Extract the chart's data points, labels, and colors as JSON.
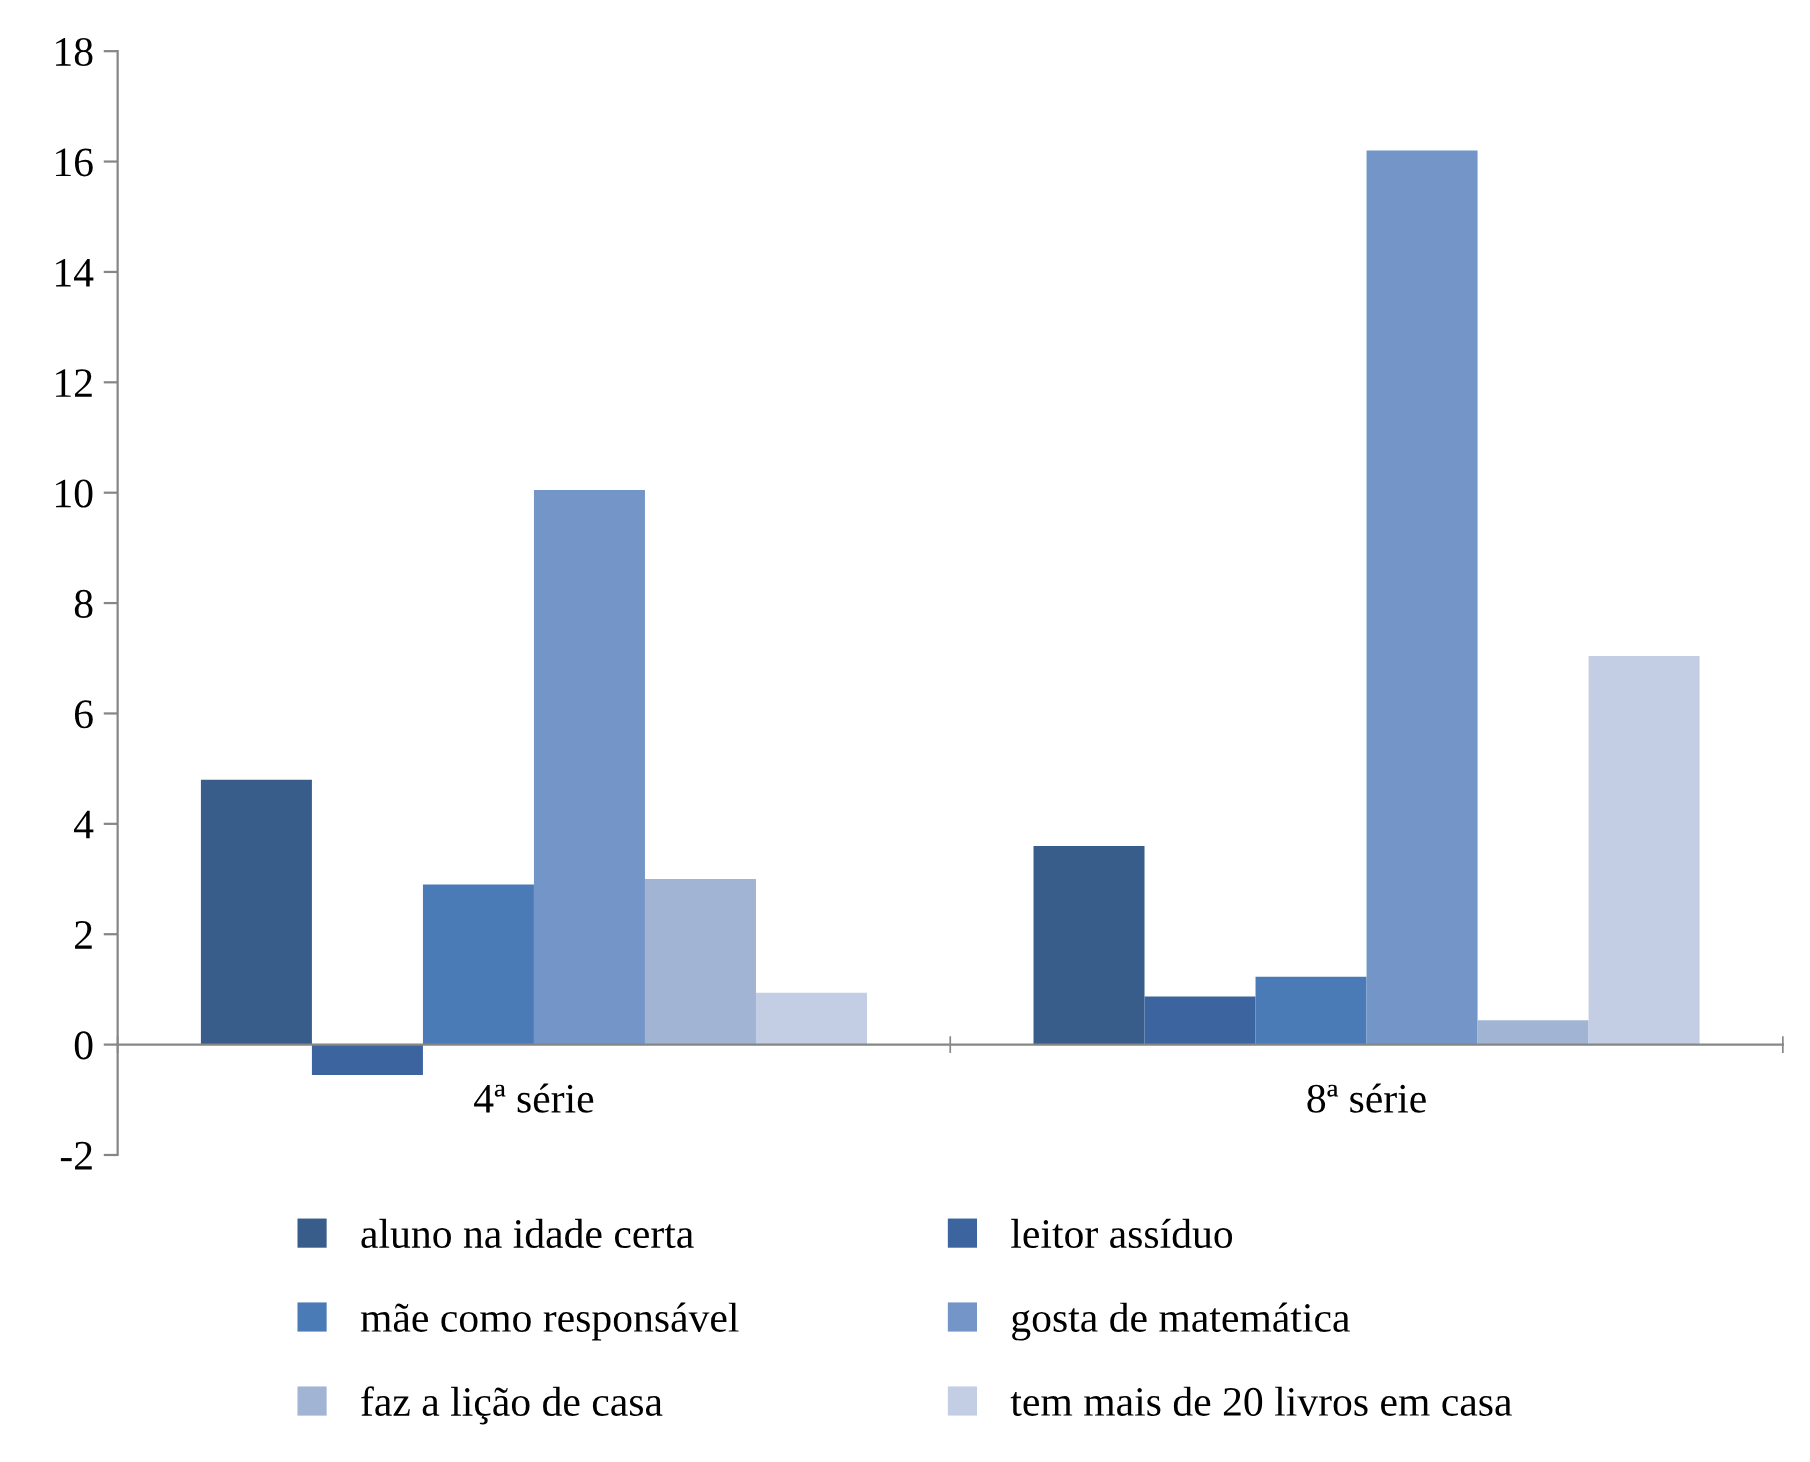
{
  "chart_data": {
    "type": "bar",
    "categories": [
      "4ª série",
      "8ª série"
    ],
    "series": [
      {
        "name": "aluno na idade certa",
        "color": "#385d8a",
        "values": [
          4.8,
          3.6
        ]
      },
      {
        "name": "leitor assíduo",
        "color": "#3c65a0",
        "values": [
          -0.55,
          0.87
        ]
      },
      {
        "name": "mãe como responsável",
        "color": "#4a7bb7",
        "values": [
          2.9,
          1.23
        ]
      },
      {
        "name": "gosta de matemática",
        "color": "#7395c8",
        "values": [
          10.05,
          16.2
        ]
      },
      {
        "name": "faz a lição de casa",
        "color": "#a2b4d4",
        "values": [
          3.0,
          0.44
        ]
      },
      {
        "name": "tem mais de 20 livros em casa",
        "color": "#c3cde3",
        "values": [
          0.94,
          7.04
        ]
      }
    ],
    "ylim": [
      -2,
      18
    ],
    "yticks": [
      -2,
      0,
      2,
      4,
      6,
      8,
      10,
      12,
      14,
      16,
      18
    ],
    "grid": false,
    "legend": "bottom"
  }
}
